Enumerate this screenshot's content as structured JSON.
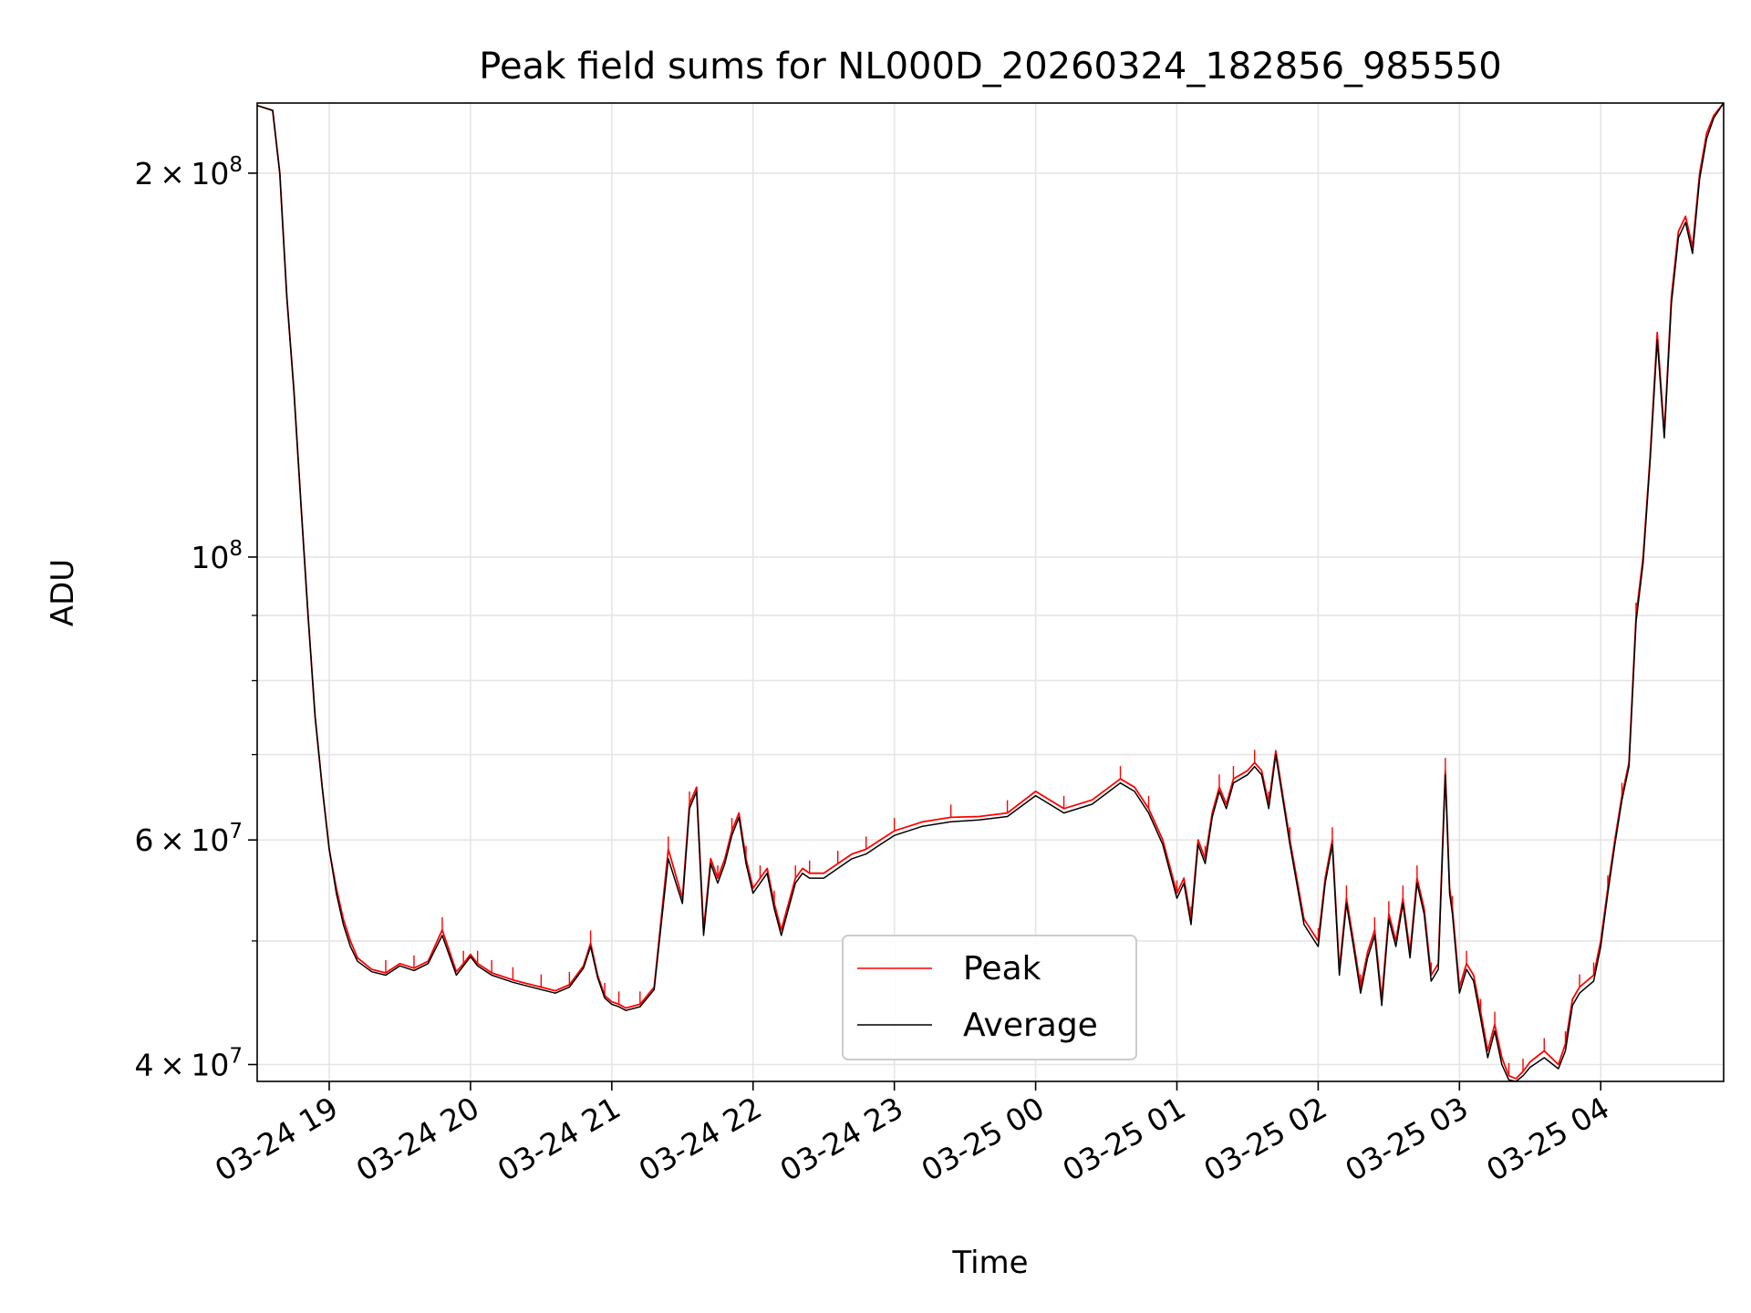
{
  "chart_data": {
    "type": "line",
    "title": "Peak field sums for NL000D_20260324_182856_985550",
    "xlabel": "Time",
    "ylabel": "ADU",
    "yscale": "log",
    "grid": true,
    "legend_position": "lower-center",
    "x_unit": "hours since 03-24 18:00",
    "xlim": [
      18.49,
      28.87
    ],
    "ylim": [
      38800000,
      227000000
    ],
    "x_ticks": [
      {
        "value": 19,
        "label": "03-24 19"
      },
      {
        "value": 20,
        "label": "03-24 20"
      },
      {
        "value": 21,
        "label": "03-24 21"
      },
      {
        "value": 22,
        "label": "03-24 22"
      },
      {
        "value": 23,
        "label": "03-24 23"
      },
      {
        "value": 24,
        "label": "03-25 00"
      },
      {
        "value": 25,
        "label": "03-25 01"
      },
      {
        "value": 26,
        "label": "03-25 02"
      },
      {
        "value": 27,
        "label": "03-25 03"
      },
      {
        "value": 28,
        "label": "03-25 04"
      }
    ],
    "y_ticks": [
      {
        "value": 40000000,
        "mantissa": "4",
        "exponent": "7"
      },
      {
        "value": 60000000,
        "mantissa": "6",
        "exponent": "7"
      },
      {
        "value": 100000000,
        "mantissa": "",
        "exponent": "8"
      },
      {
        "value": 200000000,
        "mantissa": "2",
        "exponent": "8"
      }
    ],
    "y_minor_ticks": [
      50000000,
      70000000,
      80000000,
      90000000
    ],
    "times_sign": "×",
    "base": "10",
    "x": [
      18.49,
      18.6,
      18.65,
      18.7,
      18.75,
      18.8,
      18.85,
      18.9,
      18.95,
      19.0,
      19.05,
      19.1,
      19.15,
      19.2,
      19.3,
      19.4,
      19.5,
      19.6,
      19.7,
      19.8,
      19.9,
      19.95,
      20.0,
      20.05,
      20.1,
      20.15,
      20.2,
      20.3,
      20.4,
      20.5,
      20.6,
      20.7,
      20.8,
      20.85,
      20.9,
      20.95,
      21.0,
      21.05,
      21.1,
      21.2,
      21.3,
      21.4,
      21.5,
      21.55,
      21.6,
      21.65,
      21.7,
      21.75,
      21.8,
      21.85,
      21.9,
      21.95,
      22.0,
      22.05,
      22.1,
      22.15,
      22.2,
      22.3,
      22.35,
      22.4,
      22.5,
      22.6,
      22.7,
      22.8,
      22.9,
      23.0,
      23.2,
      23.4,
      23.6,
      23.8,
      24.0,
      24.2,
      24.4,
      24.6,
      24.7,
      24.8,
      24.9,
      25.0,
      25.05,
      25.1,
      25.15,
      25.2,
      25.25,
      25.3,
      25.35,
      25.4,
      25.5,
      25.55,
      25.6,
      25.65,
      25.7,
      25.8,
      25.9,
      26.0,
      26.05,
      26.1,
      26.15,
      26.2,
      26.25,
      26.3,
      26.35,
      26.4,
      26.45,
      26.5,
      26.55,
      26.6,
      26.65,
      26.7,
      26.75,
      26.8,
      26.85,
      26.9,
      26.93,
      26.95,
      27.0,
      27.05,
      27.1,
      27.15,
      27.2,
      27.25,
      27.3,
      27.35,
      27.4,
      27.45,
      27.5,
      27.6,
      27.7,
      27.75,
      27.8,
      27.85,
      27.9,
      27.95,
      28.0,
      28.05,
      28.1,
      28.15,
      28.2,
      28.25,
      28.3,
      28.35,
      28.4,
      28.45,
      28.5,
      28.55,
      28.6,
      28.65,
      28.7,
      28.75,
      28.8,
      28.87
    ],
    "series": [
      {
        "name": "Peak",
        "color": "#ff0000",
        "values": [
          226000000,
          224000000,
          200000000,
          160000000,
          135000000,
          110000000,
          90000000,
          75000000,
          66000000,
          59000000,
          55000000,
          52000000,
          50000000,
          48500000,
          47500000,
          47200000,
          48000000,
          47600000,
          48200000,
          51000000,
          47300000,
          48000000,
          48800000,
          48000000,
          47600000,
          47200000,
          47000000,
          46600000,
          46300000,
          46000000,
          45700000,
          46200000,
          47800000,
          49800000,
          47000000,
          45300000,
          44800000,
          44600000,
          44300000,
          44600000,
          46000000,
          59000000,
          54000000,
          64000000,
          66000000,
          51000000,
          58000000,
          56000000,
          58000000,
          61000000,
          63000000,
          58000000,
          55000000,
          56000000,
          57000000,
          53500000,
          51000000,
          56000000,
          57000000,
          56500000,
          56500000,
          57500000,
          58500000,
          59000000,
          60000000,
          61000000,
          62000000,
          62500000,
          62600000,
          63000000,
          65500000,
          63500000,
          64500000,
          67000000,
          66000000,
          63500000,
          60000000,
          54500000,
          56000000,
          52000000,
          60000000,
          58000000,
          63000000,
          66000000,
          64000000,
          67000000,
          68000000,
          69000000,
          68000000,
          64000000,
          70500000,
          60000000,
          52000000,
          50000000,
          56000000,
          60000000,
          47500000,
          54000000,
          50000000,
          46000000,
          49000000,
          51000000,
          45000000,
          52500000,
          50000000,
          54000000,
          49000000,
          56000000,
          53000000,
          47000000,
          48000000,
          68000000,
          55000000,
          53000000,
          46000000,
          48000000,
          47000000,
          44000000,
          41000000,
          43000000,
          40500000,
          39200000,
          39000000,
          39500000,
          40200000,
          41000000,
          40000000,
          41500000,
          45000000,
          46000000,
          46500000,
          47000000,
          50000000,
          55000000,
          60000000,
          65000000,
          69000000,
          90000000,
          100000000,
          120000000,
          150000000,
          125000000,
          160000000,
          180000000,
          185000000,
          175000000,
          200000000,
          215000000,
          222000000,
          227000000
        ]
      },
      {
        "name": "Average",
        "color": "#000000",
        "values": [
          226000000,
          224000000,
          200000000,
          160000000,
          135000000,
          110000000,
          90000000,
          75000000,
          66000000,
          59000000,
          54500000,
          51500000,
          49500000,
          48200000,
          47300000,
          47000000,
          47800000,
          47400000,
          48000000,
          50500000,
          47000000,
          47800000,
          48600000,
          47800000,
          47400000,
          47000000,
          46800000,
          46400000,
          46100000,
          45800000,
          45500000,
          46000000,
          47600000,
          49500000,
          46800000,
          45100000,
          44600000,
          44400000,
          44100000,
          44400000,
          45800000,
          58000000,
          53500000,
          63500000,
          65500000,
          50500000,
          57500000,
          55500000,
          57500000,
          60500000,
          62500000,
          57500000,
          54500000,
          55500000,
          56500000,
          53000000,
          50500000,
          55500000,
          56500000,
          56000000,
          56000000,
          57000000,
          58000000,
          58500000,
          59500000,
          60500000,
          61500000,
          62000000,
          62200000,
          62600000,
          65000000,
          63000000,
          64000000,
          66500000,
          65500000,
          63000000,
          59500000,
          54000000,
          55500000,
          51500000,
          59500000,
          57500000,
          62500000,
          65500000,
          63500000,
          66500000,
          67500000,
          68500000,
          67500000,
          63500000,
          70000000,
          59500000,
          51500000,
          49500000,
          55500000,
          59500000,
          47000000,
          53500000,
          49500000,
          45500000,
          48500000,
          50500000,
          44500000,
          52000000,
          49500000,
          53500000,
          48500000,
          55500000,
          52500000,
          46500000,
          47500000,
          67500000,
          54500000,
          52500000,
          45500000,
          47500000,
          46500000,
          43500000,
          40500000,
          42500000,
          40000000,
          38900000,
          38800000,
          39200000,
          39800000,
          40500000,
          39700000,
          41000000,
          44500000,
          45500000,
          46000000,
          46500000,
          49500000,
          54500000,
          59500000,
          64500000,
          68500000,
          89000000,
          99000000,
          119000000,
          148000000,
          124000000,
          158000000,
          178000000,
          183000000,
          173000000,
          198000000,
          213000000,
          221000000,
          227000000
        ]
      }
    ]
  }
}
